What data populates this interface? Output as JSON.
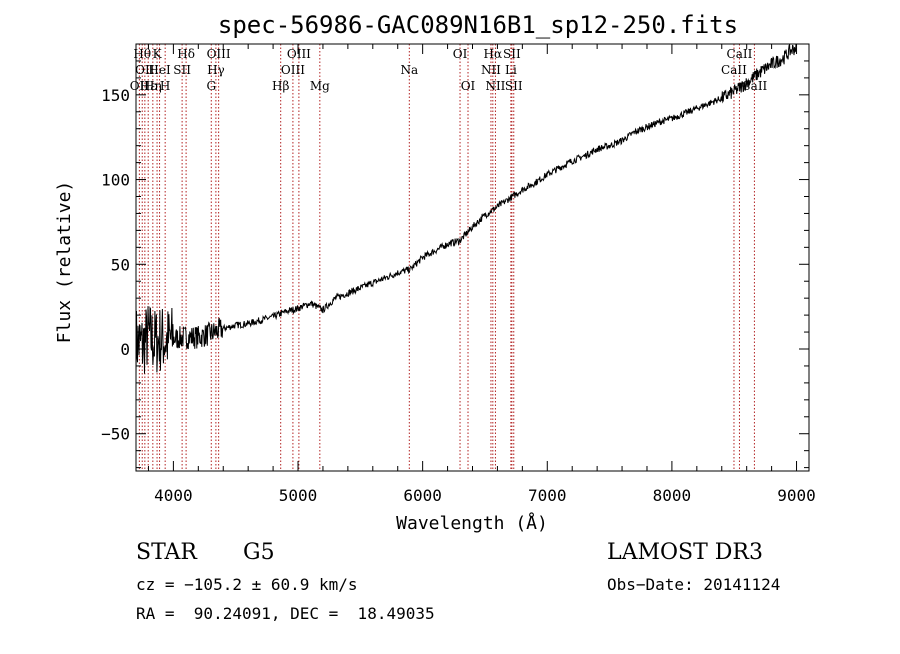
{
  "chart_data": {
    "type": "line",
    "title": "spec-56986-GAC089N16B1_sp12-250.fits",
    "xlabel": "Wavelength (Å)",
    "ylabel": "Flux (relative)",
    "xlim": [
      3700,
      9100
    ],
    "ylim": [
      -72,
      180
    ],
    "x_ticks": [
      4000,
      5000,
      6000,
      7000,
      8000,
      9000
    ],
    "x_tick_labels": [
      "4000",
      "5000",
      "6000",
      "7000",
      "8000",
      "9000"
    ],
    "y_ticks": [
      -50,
      0,
      50,
      100,
      150
    ],
    "y_tick_labels": [
      "−50",
      "0",
      "50",
      "100",
      "150"
    ],
    "line_color": "#000000",
    "marker_color": "#b22222",
    "series": [
      {
        "name": "flux",
        "x": [
          3700,
          3750,
          3800,
          3850,
          3900,
          3950,
          4000,
          4100,
          4200,
          4300,
          4400,
          4500,
          4600,
          4700,
          4800,
          4900,
          5000,
          5100,
          5200,
          5300,
          5400,
          5500,
          5600,
          5700,
          5800,
          5900,
          6000,
          6100,
          6200,
          6300,
          6400,
          6500,
          6600,
          6700,
          6800,
          6900,
          7000,
          7100,
          7200,
          7300,
          7400,
          7500,
          7600,
          7700,
          7800,
          7900,
          8000,
          8100,
          8200,
          8300,
          8400,
          8500,
          8600,
          8700,
          8800,
          8900,
          8950,
          9000
        ],
        "y": [
          5,
          2,
          8,
          4,
          6,
          5,
          6,
          7,
          7,
          9,
          12,
          14,
          15,
          17,
          19,
          22,
          24,
          27,
          23,
          30,
          33,
          36,
          39,
          42,
          45,
          47,
          54,
          58,
          62,
          64,
          72,
          79,
          84,
          89,
          94,
          98,
          103,
          107,
          111,
          114,
          118,
          120,
          123,
          128,
          131,
          134,
          136,
          139,
          142,
          145,
          148,
          152,
          157,
          163,
          168,
          172,
          176,
          178
        ]
      }
    ],
    "features": [
      {
        "x": 3727,
        "y": 90,
        "label": "OII"
      },
      {
        "x": 3750,
        "y": 58,
        "label": "Hθ"
      },
      {
        "x": 3771,
        "y": 74,
        "label": "OII"
      },
      {
        "x": 3798,
        "y": 90,
        "label": "Hε"
      },
      {
        "x": 3835,
        "y": 90,
        "label": "Hη"
      },
      {
        "x": 3869,
        "y": 58,
        "label": "K"
      },
      {
        "x": 3889,
        "y": 74,
        "label": "HeI"
      },
      {
        "x": 3934,
        "y": 90,
        "label": "H"
      },
      {
        "x": 4070,
        "y": 74,
        "label": "SII"
      },
      {
        "x": 4102,
        "y": 58,
        "label": "Hδ"
      },
      {
        "x": 4304,
        "y": 90,
        "label": "G"
      },
      {
        "x": 4341,
        "y": 74,
        "label": "Hγ"
      },
      {
        "x": 4363,
        "y": 58,
        "label": "OIII"
      },
      {
        "x": 4861,
        "y": 90,
        "label": "Hβ"
      },
      {
        "x": 4959,
        "y": 74,
        "label": "OIII"
      },
      {
        "x": 5007,
        "y": 58,
        "label": "OIII"
      },
      {
        "x": 5175,
        "y": 90,
        "label": "Mg"
      },
      {
        "x": 5893,
        "y": 74,
        "label": "Na"
      },
      {
        "x": 6300,
        "y": 58,
        "label": "OI"
      },
      {
        "x": 6364,
        "y": 90,
        "label": "OI"
      },
      {
        "x": 6548,
        "y": 74,
        "label": "NII"
      },
      {
        "x": 6563,
        "y": 58,
        "label": "Hα"
      },
      {
        "x": 6584,
        "y": 90,
        "label": "NII"
      },
      {
        "x": 6708,
        "y": 74,
        "label": "Li"
      },
      {
        "x": 6716,
        "y": 58,
        "label": "SII"
      },
      {
        "x": 6731,
        "y": 90,
        "label": "SII"
      },
      {
        "x": 8498,
        "y": 74,
        "label": "CaII"
      },
      {
        "x": 8542,
        "y": 58,
        "label": "CaII"
      },
      {
        "x": 8662,
        "y": 90,
        "label": "CaII"
      }
    ]
  },
  "info": {
    "object_class": "STAR",
    "subclass": "G5",
    "survey": "LAMOST DR3",
    "redshift": "cz = −105.2 ± 60.9 km/s",
    "obs_date": "Obs−Date: 20141124",
    "coords": "RA =  90.24091, DEC =  18.49035"
  }
}
